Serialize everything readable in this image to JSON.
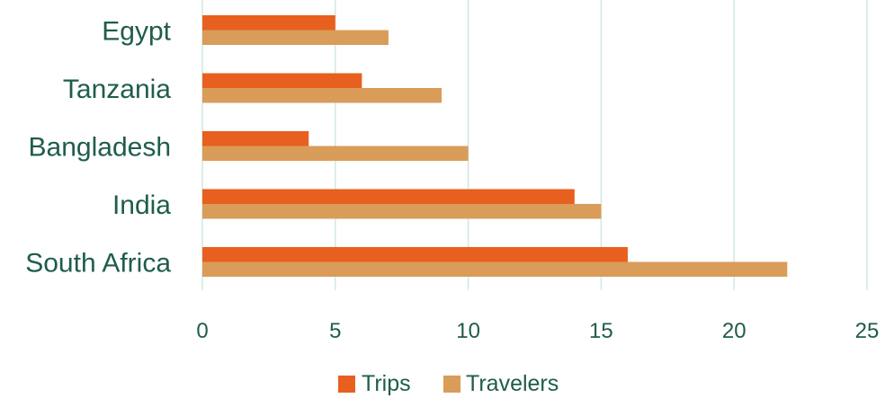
{
  "chart_data": {
    "type": "bar",
    "orientation": "horizontal",
    "categories": [
      "Egypt",
      "Tanzania",
      "Bangladesh",
      "India",
      "South Africa"
    ],
    "series": [
      {
        "name": "Trips",
        "values": [
          5,
          6,
          4,
          14,
          16
        ],
        "color": "#e8601f"
      },
      {
        "name": "Travelers",
        "values": [
          7,
          9,
          10,
          15,
          22
        ],
        "color": "#d99c59"
      }
    ],
    "xlim": [
      0,
      25
    ],
    "xticks": [
      "0",
      "5",
      "10",
      "15",
      "20",
      "25"
    ],
    "grid": "vertical",
    "legend_position": "bottom"
  }
}
